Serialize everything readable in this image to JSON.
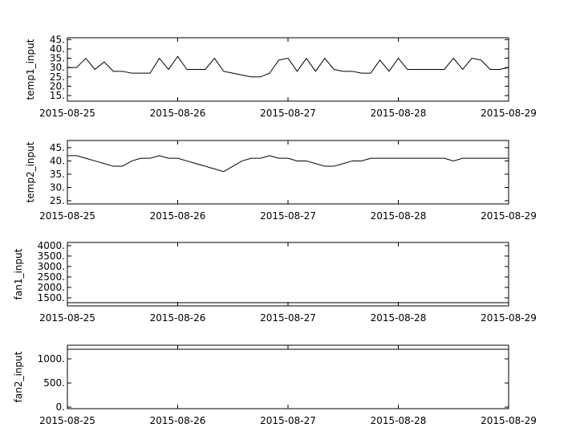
{
  "chart_data": [
    {
      "type": "line",
      "ylabel": "temp1_input",
      "color": "#000000",
      "xlim": [
        "2015-08-25",
        "2015-08-29"
      ],
      "xticks": [
        "2015-08-25",
        "2015-08-26",
        "2015-08-27",
        "2015-08-28",
        "2015-08-29"
      ],
      "ylim": [
        12,
        46
      ],
      "yticks": [
        {
          "value": 15,
          "label": "15."
        },
        {
          "value": 20,
          "label": "20."
        },
        {
          "value": 25,
          "label": "25."
        },
        {
          "value": 30,
          "label": "30."
        },
        {
          "value": 35,
          "label": "35."
        },
        {
          "value": 40,
          "label": "40."
        },
        {
          "value": 45,
          "label": "45."
        }
      ],
      "values": [
        30,
        30,
        35,
        29,
        33,
        28,
        28,
        27,
        27,
        27,
        35,
        29,
        36,
        29,
        29,
        29,
        35,
        28,
        27,
        26,
        25,
        25,
        27,
        34,
        35,
        28,
        35,
        28,
        35,
        29,
        28,
        28,
        27,
        27,
        34,
        28,
        35,
        29,
        29,
        29,
        29,
        29,
        35,
        29,
        35,
        34,
        29,
        29,
        30
      ]
    },
    {
      "type": "line",
      "ylabel": "temp2_input",
      "color": "#000000",
      "xlim": [
        "2015-08-25",
        "2015-08-29"
      ],
      "xticks": [
        "2015-08-25",
        "2015-08-26",
        "2015-08-27",
        "2015-08-28",
        "2015-08-29"
      ],
      "ylim": [
        23.8,
        47.7
      ],
      "yticks": [
        {
          "value": 25,
          "label": "25."
        },
        {
          "value": 30,
          "label": "30."
        },
        {
          "value": 35,
          "label": "35."
        },
        {
          "value": 40,
          "label": "40."
        },
        {
          "value": 45,
          "label": "45."
        }
      ],
      "values": [
        42,
        42,
        41,
        40,
        39,
        38,
        38,
        40,
        41,
        41,
        42,
        41,
        41,
        40,
        39,
        38,
        37,
        36,
        38,
        40,
        41,
        41,
        42,
        41,
        41,
        40,
        40,
        39,
        38,
        38,
        39,
        40,
        40,
        41,
        41,
        41,
        41,
        41,
        41,
        41,
        41,
        41,
        40,
        41,
        41,
        41,
        41,
        41,
        41
      ]
    },
    {
      "type": "line",
      "ylabel": "fan1_input",
      "color": "#000000",
      "xlim": [
        "2015-08-25",
        "2015-08-29"
      ],
      "xticks": [
        "2015-08-25",
        "2015-08-26",
        "2015-08-27",
        "2015-08-28",
        "2015-08-29"
      ],
      "ylim": [
        1115,
        4150
      ],
      "yticks": [
        {
          "value": 1500,
          "label": "1500."
        },
        {
          "value": 2000,
          "label": "2000."
        },
        {
          "value": 2500,
          "label": "2500."
        },
        {
          "value": 3000,
          "label": "3000."
        },
        {
          "value": 3500,
          "label": "3500."
        },
        {
          "value": 4000,
          "label": "4000."
        }
      ],
      "values": [
        1270,
        1270,
        1270,
        1270,
        1270,
        1270,
        1270,
        1270,
        1270
      ]
    },
    {
      "type": "line",
      "ylabel": "fan2_input",
      "color": "#000000",
      "xlim": [
        "2015-08-25",
        "2015-08-29"
      ],
      "xticks": [
        "2015-08-25",
        "2015-08-26",
        "2015-08-27",
        "2015-08-28",
        "2015-08-29"
      ],
      "ylim": [
        -33,
        1283
      ],
      "yticks": [
        {
          "value": 0,
          "label": "0."
        },
        {
          "value": 500,
          "label": "500."
        },
        {
          "value": 1000,
          "label": "1000."
        }
      ],
      "values": [
        1200,
        1200,
        1200,
        1200,
        1200,
        1200,
        1200,
        1200,
        1200
      ]
    }
  ]
}
